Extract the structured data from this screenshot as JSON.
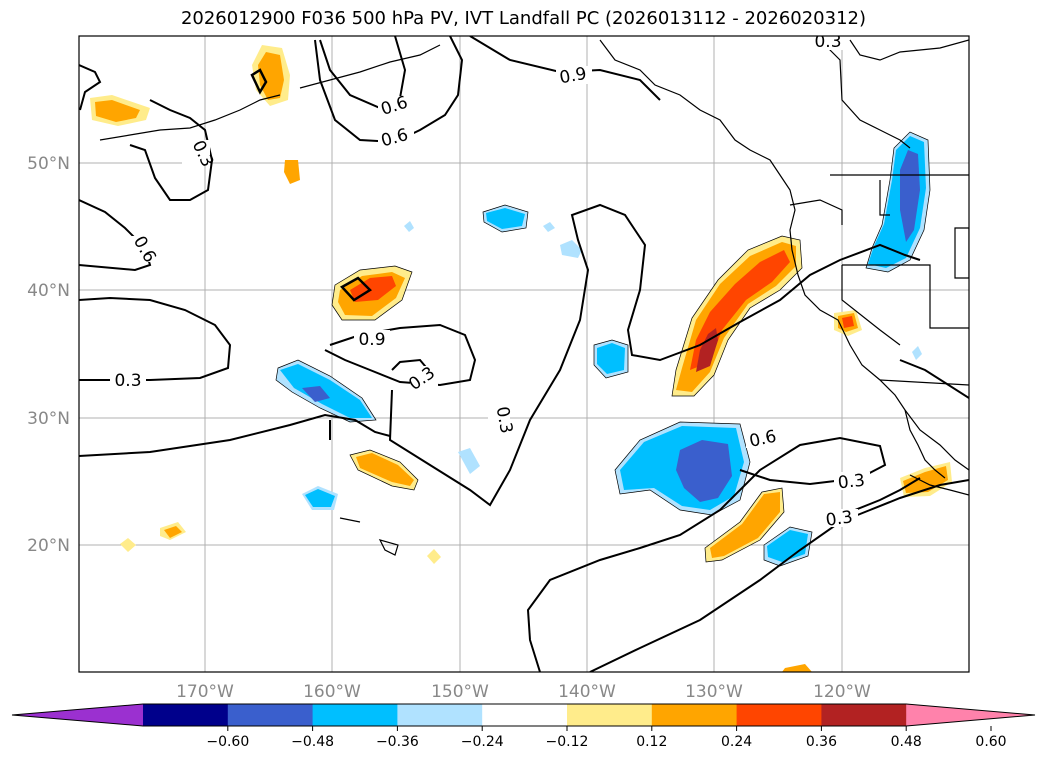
{
  "title": "2026012900 F036 500 hPa PV, IVT Landfall PC (2026013112 - 2026020312)",
  "map": {
    "lat_ticks": [
      "50°N",
      "40°N",
      "30°N",
      "20°N"
    ],
    "lon_ticks": [
      "170°W",
      "160°W",
      "150°W",
      "140°W",
      "130°W",
      "120°W"
    ],
    "contour_labels": [
      "0.3",
      "0.9",
      "0.6",
      "0.6",
      "0.3",
      "0.6",
      "0.9",
      "0.3",
      "0.3",
      "0.3",
      "0.6",
      "0.3",
      "0.3"
    ]
  },
  "colorbar": {
    "ticks": [
      "−0.60",
      "−0.48",
      "−0.36",
      "−0.24",
      "−0.12",
      "0.12",
      "0.24",
      "0.36",
      "0.48",
      "0.60"
    ],
    "colors": [
      "#9b30d0",
      "#00008b",
      "#3a5fcd",
      "#00bfff",
      "#b0e2ff",
      "#ffffff",
      "#ffec8b",
      "#ffa500",
      "#ff4500",
      "#b22222",
      "#ff82ab"
    ]
  }
}
